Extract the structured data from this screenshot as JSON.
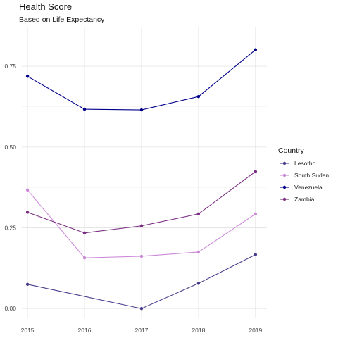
{
  "chart_data": {
    "type": "line",
    "title": "Health Score",
    "subtitle": "Based on Life Expectancy",
    "xlabel": "",
    "ylabel": "",
    "x": [
      2015,
      2016,
      2017,
      2018,
      2019
    ],
    "x_ticks": [
      "2015",
      "2016",
      "2017",
      "2018",
      "2019"
    ],
    "y_ticks": [
      "0.00",
      "0.25",
      "0.50",
      "0.75"
    ],
    "y_tick_values": [
      0.0,
      0.25,
      0.5,
      0.75
    ],
    "ylim": [
      -0.03,
      0.87
    ],
    "xlim": [
      2014.9,
      2019.2
    ],
    "grid": true,
    "legend": {
      "title": "Country",
      "position": "right"
    },
    "series": [
      {
        "name": "Lesotho",
        "color": "#483D8B",
        "values": [
          0.075,
          null,
          0.0,
          0.078,
          0.167
        ]
      },
      {
        "name": "South Sudan",
        "color": "#CC88D8",
        "values": [
          0.367,
          0.157,
          0.162,
          0.175,
          0.293
        ]
      },
      {
        "name": "Venezuela",
        "color": "#00008B",
        "values": [
          0.719,
          0.617,
          0.615,
          0.656,
          0.801
        ]
      },
      {
        "name": "Zambia",
        "color": "#7B2D82",
        "values": [
          0.298,
          0.234,
          0.256,
          0.293,
          0.424
        ]
      }
    ]
  }
}
